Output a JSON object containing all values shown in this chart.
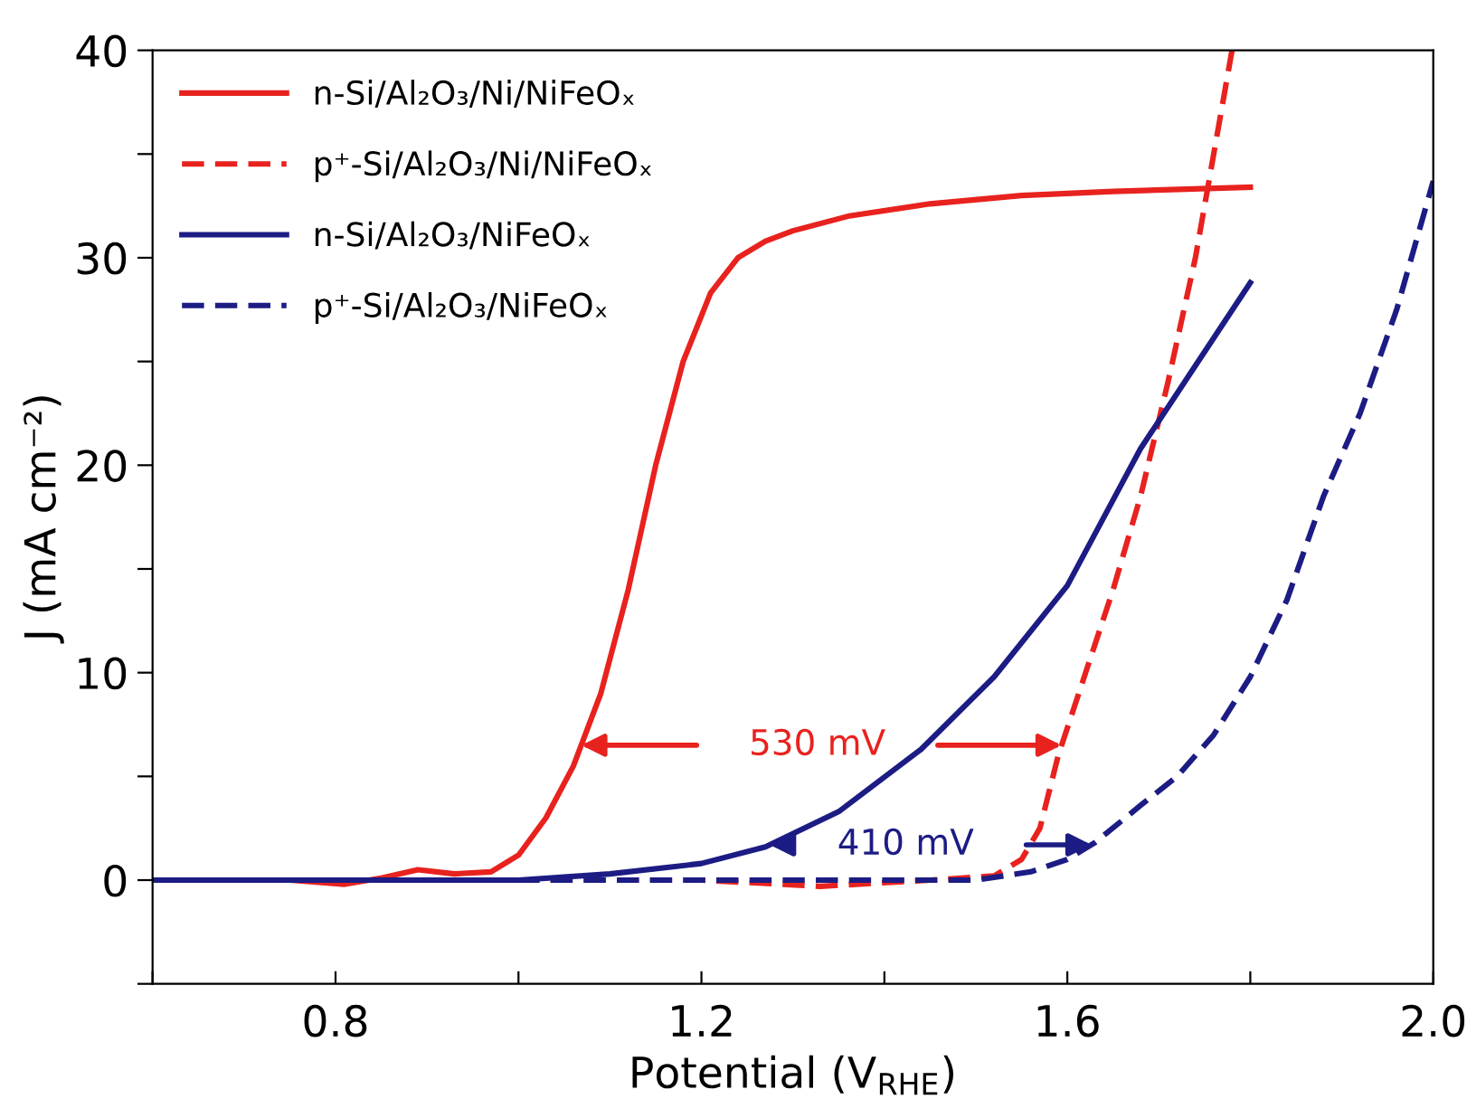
{
  "chart_data": {
    "type": "line",
    "xlabel": "Potential (V$_{RHE}$)",
    "ylabel": "J (mA cm⁻²)",
    "xlim": [
      0.6,
      2.0
    ],
    "ylim": [
      -5,
      40
    ],
    "xticks": [
      {
        "value": 0.6,
        "label": null
      },
      0.8,
      {
        "value": 1.0,
        "label": null
      },
      1.2,
      {
        "value": 1.4,
        "label": null
      },
      1.6,
      {
        "value": 1.8,
        "label": null
      },
      {
        "value": 2.0,
        "label": "2.0"
      }
    ],
    "yticks": [
      {
        "value": -5,
        "label": null
      },
      0,
      {
        "value": 5,
        "label": null
      },
      10,
      {
        "value": 15,
        "label": null
      },
      20,
      {
        "value": 25,
        "label": null
      },
      30,
      {
        "value": 35,
        "label": null
      },
      40
    ],
    "grid": false,
    "legend": "top left",
    "marker": "none",
    "series": [
      {
        "name": "n-Si/Al₂O₃/Ni/NiFeOₓ",
        "color": "#e8221e",
        "line_style": "solid",
        "x": [
          0.6,
          0.75,
          0.81,
          0.85,
          0.89,
          0.93,
          0.97,
          1.0,
          1.03,
          1.06,
          1.09,
          1.12,
          1.15,
          1.18,
          1.21,
          1.24,
          1.27,
          1.3,
          1.36,
          1.45,
          1.55,
          1.65,
          1.8
        ],
        "values": [
          0,
          0,
          -0.2,
          0.1,
          0.5,
          0.3,
          0.4,
          1.2,
          3,
          5.5,
          9,
          14,
          20,
          25,
          28.3,
          30,
          30.8,
          31.3,
          32,
          32.6,
          33,
          33.2,
          33.4
        ]
      },
      {
        "name": "p⁺-Si/Al₂O₃/Ni/NiFeOₓ",
        "color": "#e8221e",
        "line_style": "dashed",
        "x": [
          0.6,
          1.2,
          1.33,
          1.45,
          1.52,
          1.55,
          1.57,
          1.59,
          1.62,
          1.65,
          1.68,
          1.71,
          1.74,
          1.78
        ],
        "values": [
          0,
          0,
          -0.3,
          0,
          0.2,
          1,
          2.5,
          6,
          10,
          14,
          18.5,
          24,
          30,
          40
        ]
      },
      {
        "name": "n-Si/Al₂O₃/NiFeOₓ",
        "color": "#1c1c84",
        "line_style": "solid",
        "x": [
          0.6,
          1.0,
          1.1,
          1.2,
          1.27,
          1.35,
          1.44,
          1.52,
          1.6,
          1.68,
          1.74,
          1.8
        ],
        "values": [
          0,
          0,
          0.3,
          0.8,
          1.6,
          3.3,
          6.3,
          9.8,
          14.2,
          20.8,
          24.8,
          28.8
        ]
      },
      {
        "name": "p⁺-Si/Al₂O₃/NiFeOₓ",
        "color": "#1c1c84",
        "line_style": "dashed",
        "x": [
          0.6,
          1.5,
          1.56,
          1.6,
          1.63,
          1.68,
          1.72,
          1.76,
          1.8,
          1.84,
          1.88,
          1.92,
          1.96,
          2.0
        ],
        "values": [
          0,
          0,
          0.4,
          1,
          1.8,
          3.6,
          5,
          7,
          9.8,
          13.5,
          18.5,
          22.5,
          27.5,
          33.7
        ]
      }
    ],
    "annotations": [
      "530 mV",
      "410 mV"
    ]
  }
}
